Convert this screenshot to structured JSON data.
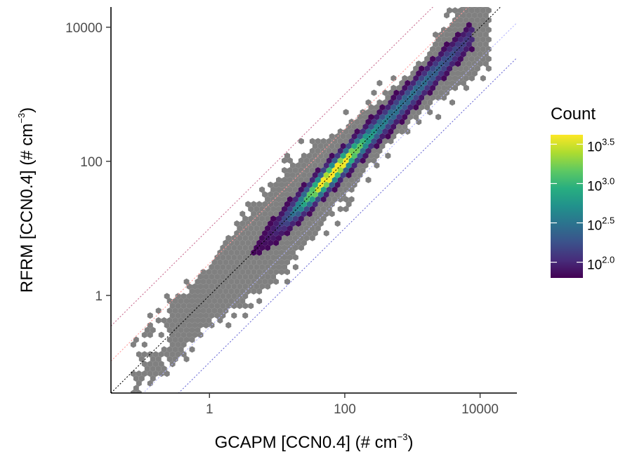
{
  "chart_data": {
    "type": "hexbin",
    "xlabel": "GCAPM [CCN0.4] (# cm",
    "ylabel": "RFRM [CCN0.4] (# cm",
    "unit_exponent": "−3",
    "unit_close": ")",
    "xscale": "log10",
    "yscale": "log10",
    "xlim": [
      0.035,
      35000
    ],
    "ylim": [
      0.035,
      20000
    ],
    "xticks": [
      1,
      100,
      10000
    ],
    "xtick_labels": [
      "1",
      "100",
      "10000"
    ],
    "yticks": [
      1,
      100,
      10000
    ],
    "ytick_labels": [
      "1",
      "100",
      "10000"
    ],
    "grid": false,
    "reference_lines": [
      {
        "name": "1:1",
        "factor": 1,
        "color": "#000000",
        "style": "dotted"
      },
      {
        "name": "factor 3 above",
        "factor": 3,
        "color": "#ff9999",
        "style": "dotted"
      },
      {
        "name": "factor 10 above",
        "factor": 10,
        "color": "#c96b8f",
        "style": "dotted"
      },
      {
        "name": "factor 3 below",
        "factor": 0.3333,
        "color": "#b3b3ff",
        "style": "dotted"
      },
      {
        "name": "factor 10 below",
        "factor": 0.1,
        "color": "#6b6bd6",
        "style": "dotted"
      }
    ],
    "density_ridge": {
      "log_x_range": [
        0.6,
        3.9
      ],
      "spread_log_y": 0.28,
      "peak_log_x": 1.8
    },
    "low_count_color": "#808080",
    "legend": {
      "title": "Count",
      "position": "right",
      "scale": "log10",
      "range_log": [
        1.8,
        3.62
      ],
      "ticks": [
        {
          "log": 2.0,
          "base": "10",
          "exp": "2.0"
        },
        {
          "log": 2.5,
          "base": "10",
          "exp": "2.5"
        },
        {
          "log": 3.0,
          "base": "10",
          "exp": "3.0"
        },
        {
          "log": 3.5,
          "base": "10",
          "exp": "3.5"
        }
      ],
      "colormap": "viridis"
    }
  }
}
